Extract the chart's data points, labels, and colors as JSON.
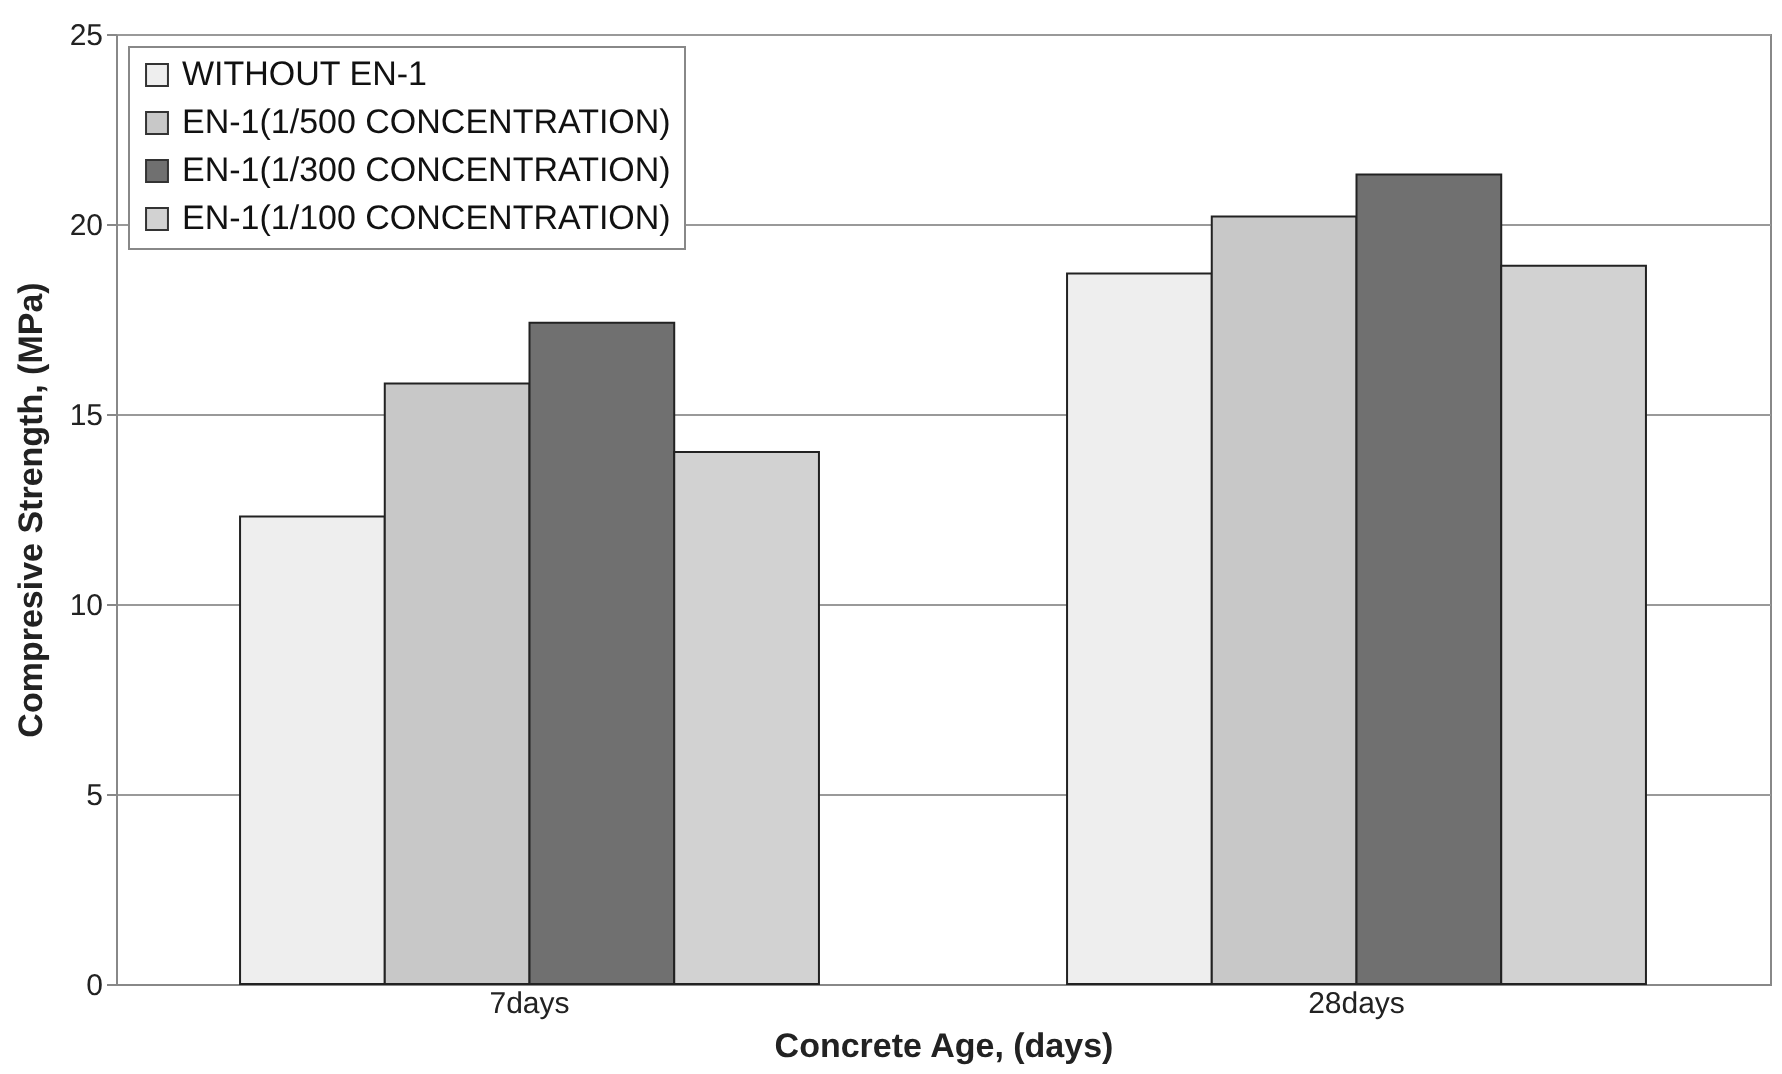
{
  "chart_data": {
    "type": "bar",
    "xlabel": "Concrete Age, (days)",
    "ylabel": "Compresive Strength, (MPa)",
    "categories": [
      "7days",
      "28days"
    ],
    "series": [
      {
        "name": "WITHOUT EN-1",
        "color": "#eeeeee",
        "values": [
          12.3,
          18.7
        ]
      },
      {
        "name": "EN-1(1/500 CONCENTRATION)",
        "color": "#c8c8c8",
        "values": [
          15.8,
          20.2
        ]
      },
      {
        "name": "EN-1(1/300 CONCENTRATION)",
        "color": "#707070",
        "values": [
          17.4,
          21.3
        ]
      },
      {
        "name": "EN-1(1/100 CONCENTRATION)",
        "color": "#d2d2d2",
        "values": [
          14.0,
          18.9
        ]
      }
    ],
    "ylim": [
      0,
      25
    ],
    "yticks": [
      0,
      5,
      10,
      15,
      20,
      25
    ],
    "grid": "y",
    "legend": "top left"
  }
}
